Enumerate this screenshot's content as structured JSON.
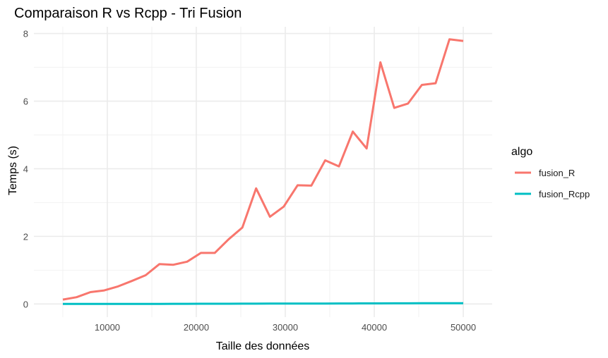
{
  "chart_data": {
    "type": "line",
    "title": "Comparaison R vs Rcpp - Tri Fusion",
    "xlabel": "Taille des données",
    "ylabel": "Temps (s)",
    "xlim": [
      5000,
      50000
    ],
    "ylim": [
      0,
      8
    ],
    "x_ticks": [
      10000,
      20000,
      30000,
      40000,
      50000
    ],
    "y_ticks": [
      0,
      2,
      4,
      6,
      8
    ],
    "grid": true,
    "legend": {
      "title": "algo",
      "position": "right"
    },
    "x": [
      5000,
      6552,
      8103,
      9655,
      11207,
      12759,
      14310,
      15862,
      17414,
      18966,
      20517,
      22069,
      23621,
      25172,
      26724,
      28276,
      29828,
      31379,
      32931,
      34483,
      36034,
      37586,
      39138,
      40690,
      42241,
      43793,
      45345,
      46897,
      48448,
      50000
    ],
    "series": [
      {
        "name": "fusion_R",
        "color": "#F8766D",
        "values": [
          0.13,
          0.2,
          0.35,
          0.4,
          0.52,
          0.68,
          0.85,
          1.18,
          1.16,
          1.25,
          1.51,
          1.51,
          1.91,
          2.26,
          3.42,
          2.58,
          2.88,
          3.51,
          3.5,
          4.25,
          4.07,
          5.1,
          4.6,
          7.15,
          5.8,
          5.93,
          6.48,
          6.53,
          7.83,
          7.78
        ]
      },
      {
        "name": "fusion_Rcpp",
        "color": "#00BFC4",
        "values": [
          0.0,
          0.0,
          0.0,
          0.001,
          0.001,
          0.002,
          0.002,
          0.003,
          0.004,
          0.005,
          0.006,
          0.006,
          0.007,
          0.008,
          0.009,
          0.01,
          0.01,
          0.011,
          0.012,
          0.013,
          0.014,
          0.015,
          0.016,
          0.017,
          0.018,
          0.019,
          0.02,
          0.021,
          0.022,
          0.023
        ]
      }
    ]
  }
}
